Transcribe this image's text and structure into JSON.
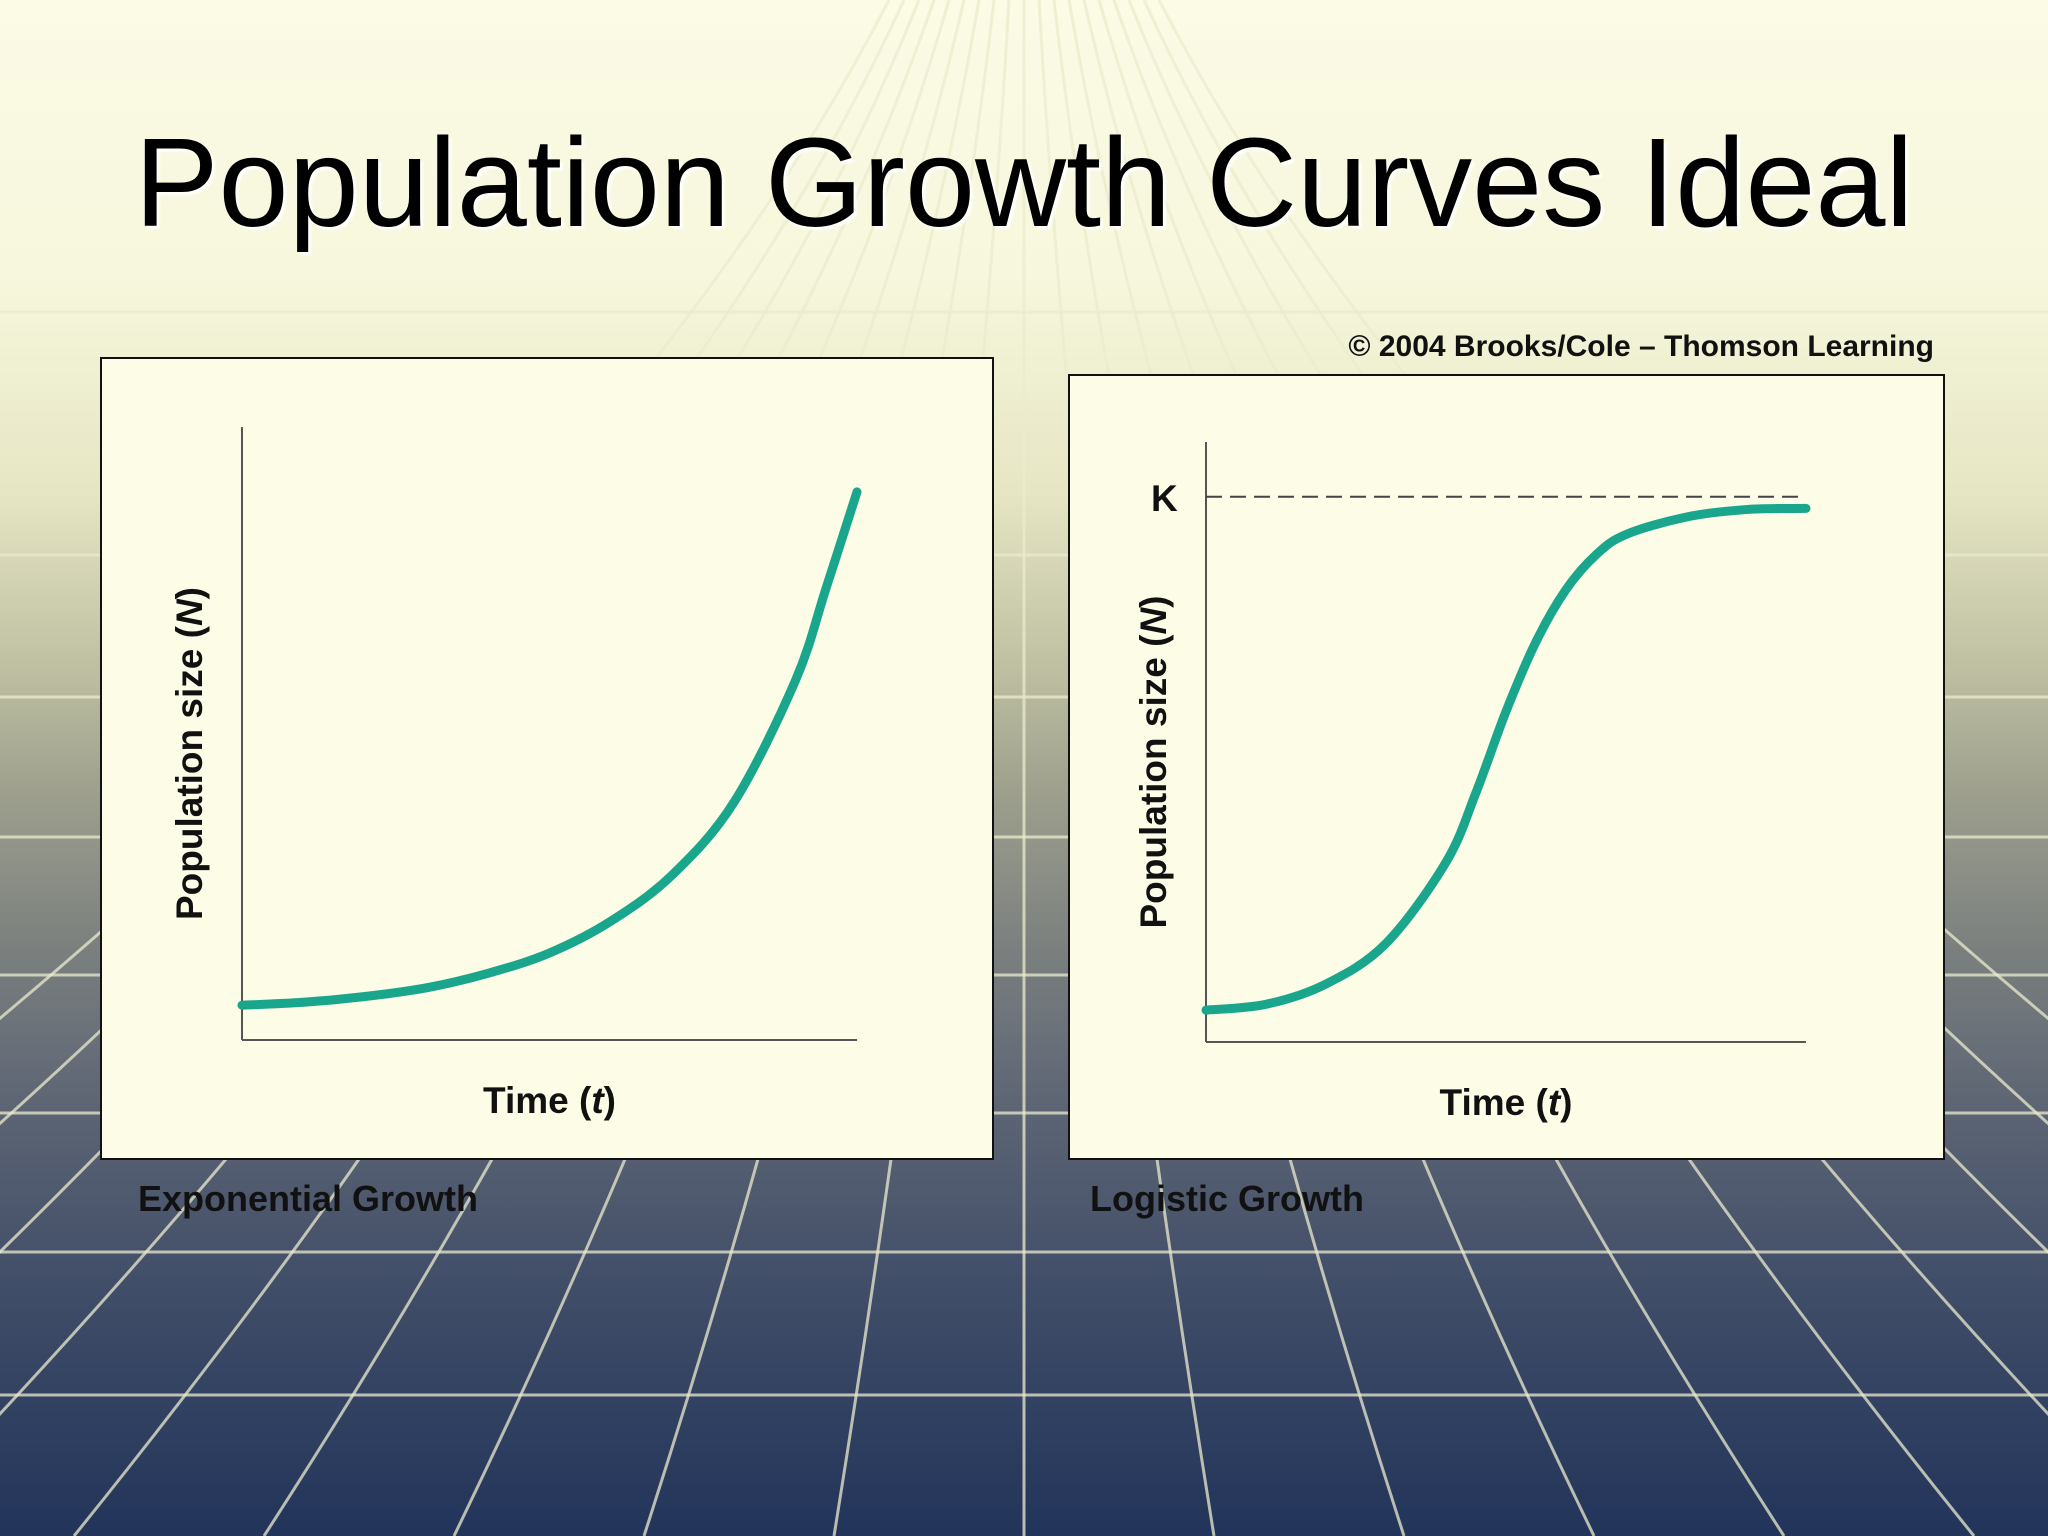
{
  "slide": {
    "title": "Population Growth Curves Ideal",
    "copyright": "© 2004 Brooks/Cole – Thomson Learning"
  },
  "colors": {
    "curve": "#1aa68c",
    "axis": "#555555",
    "panel_bg": "#fdfce6"
  },
  "chart_data": [
    {
      "type": "line",
      "caption": "Exponential Growth",
      "xlabel": "Time",
      "xlabel_var": "t",
      "ylabel": "Population size",
      "ylabel_var": "N",
      "x": [
        0,
        10,
        20,
        30,
        40,
        50,
        60,
        70,
        80,
        90,
        95,
        100
      ],
      "series": [
        {
          "values": [
            6,
            6.5,
            7.5,
            9,
            11.5,
            15,
            20.5,
            28.5,
            41,
            62,
            78,
            94.5
          ]
        }
      ],
      "xlim": [
        0,
        100
      ],
      "ylim": [
        0,
        100
      ]
    },
    {
      "type": "line",
      "caption": "Logistic Growth",
      "xlabel": "Time",
      "xlabel_var": "t",
      "ylabel": "Population size",
      "ylabel_var": "N",
      "k_label": "K",
      "k_value": 94,
      "x": [
        0,
        10,
        20,
        30,
        40,
        45,
        50,
        55,
        60,
        65,
        70,
        80,
        90,
        100
      ],
      "series": [
        {
          "values": [
            5.5,
            6.5,
            10,
            17,
            31,
            43,
            57,
            69,
            78,
            84,
            87.5,
            90.5,
            91.8,
            92
          ]
        }
      ],
      "xlim": [
        0,
        100
      ],
      "ylim": [
        0,
        100
      ]
    }
  ]
}
